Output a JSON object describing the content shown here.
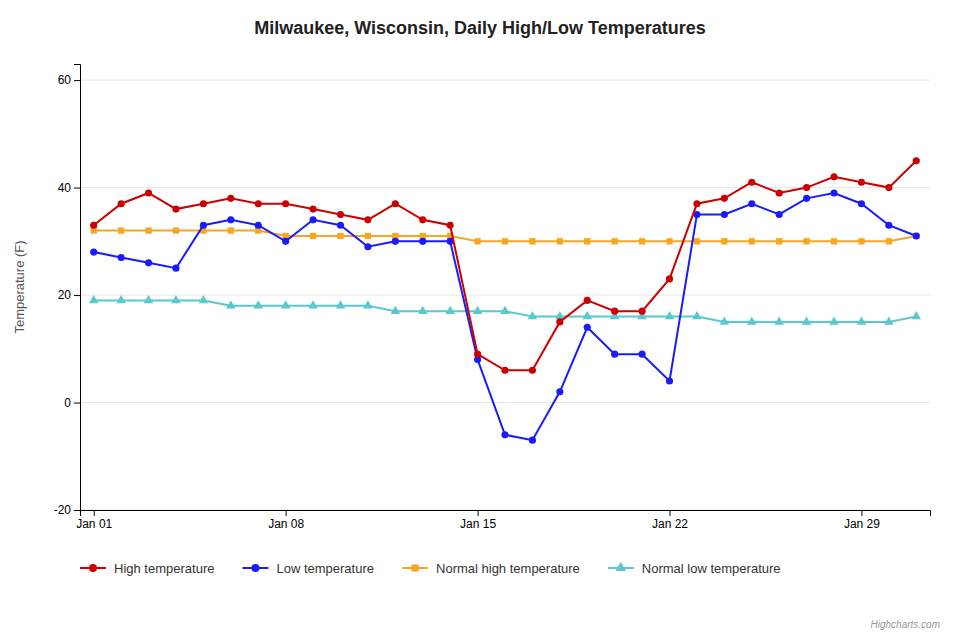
{
  "chart_data": {
    "type": "line",
    "title": "Milwaukee, Wisconsin, Daily High/Low Temperatures",
    "ylabel": "Temperature (F)",
    "x": [
      1,
      2,
      3,
      4,
      5,
      6,
      7,
      8,
      9,
      10,
      11,
      12,
      13,
      14,
      15,
      16,
      17,
      18,
      19,
      20,
      21,
      22,
      23,
      24,
      25,
      26,
      27,
      28,
      29,
      30,
      31
    ],
    "series": [
      {
        "name": "High temperature",
        "color": "#cc0000",
        "marker": "circle",
        "values": [
          33,
          37,
          39,
          36,
          37,
          38,
          37,
          37,
          36,
          35,
          34,
          37,
          34,
          33,
          9,
          6,
          6,
          15,
          19,
          17,
          17,
          23,
          37,
          38,
          41,
          39,
          40,
          42,
          41,
          40,
          45
        ]
      },
      {
        "name": "Low temperature",
        "color": "#1a1aff",
        "marker": "circle",
        "values": [
          28,
          27,
          26,
          25,
          33,
          34,
          33,
          30,
          34,
          33,
          29,
          30,
          30,
          30,
          8,
          -6,
          -7,
          2,
          14,
          9,
          9,
          4,
          35,
          35,
          37,
          35,
          38,
          39,
          37,
          33,
          31
        ]
      },
      {
        "name": "Normal high temperature",
        "color": "#f5a623",
        "marker": "square",
        "values": [
          32,
          32,
          32,
          32,
          32,
          32,
          32,
          31,
          31,
          31,
          31,
          31,
          31,
          31,
          30,
          30,
          30,
          30,
          30,
          30,
          30,
          30,
          30,
          30,
          30,
          30,
          30,
          30,
          30,
          30,
          31
        ]
      },
      {
        "name": "Normal low temperature",
        "color": "#5bc8d0",
        "marker": "triangle",
        "values": [
          19,
          19,
          19,
          19,
          19,
          18,
          18,
          18,
          18,
          18,
          18,
          17,
          17,
          17,
          17,
          17,
          16,
          16,
          16,
          16,
          16,
          16,
          16,
          15,
          15,
          15,
          15,
          15,
          15,
          15,
          16
        ]
      }
    ],
    "xlim": [
      0.5,
      31.5
    ],
    "xticks": [
      {
        "value": 1,
        "label": "Jan 01"
      },
      {
        "value": 8,
        "label": "Jan 08"
      },
      {
        "value": 15,
        "label": "Jan 15"
      },
      {
        "value": 22,
        "label": "Jan 22"
      },
      {
        "value": 29,
        "label": "Jan 29"
      }
    ],
    "ylim": [
      -20,
      63
    ],
    "yticks": [
      -20,
      0,
      20,
      40,
      60
    ],
    "grid": true,
    "legend": "bottom",
    "annotations": [
      "Highcharts.com"
    ]
  }
}
